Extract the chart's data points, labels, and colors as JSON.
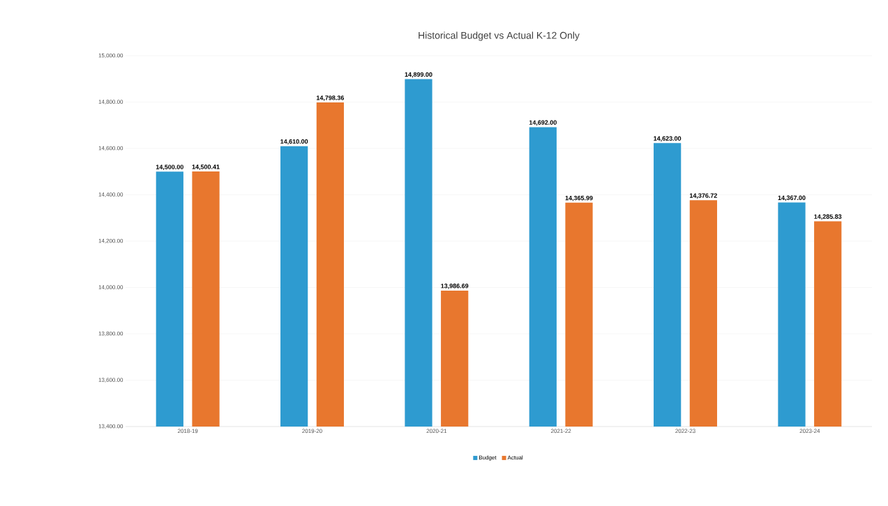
{
  "chart_data": {
    "type": "bar",
    "title": "Historical Budget vs Actual K-12 Only",
    "categories": [
      "2018-19",
      "2019-20",
      "2020-21",
      "2021-22",
      "2022-23",
      "2023-24"
    ],
    "series": [
      {
        "name": "Budget",
        "color": "#2e9bd0",
        "values": [
          14500,
          14610,
          14899,
          14692,
          14623,
          14367
        ],
        "value_labels": [
          "14,500.00",
          "14,610.00",
          "14,899.00",
          "14,692.00",
          "14,623.00",
          "14,367.00"
        ]
      },
      {
        "name": "Actual",
        "color": "#e8772e",
        "values": [
          14500.41,
          14798.36,
          13986.69,
          14365.99,
          14376.72,
          14285.83
        ],
        "value_labels": [
          "14,500.41",
          "14,798.36",
          "13,986.69",
          "14,365.99",
          "14,376.72",
          "14,285.83"
        ]
      }
    ],
    "ylim": [
      13400,
      15000
    ],
    "yticks": [
      {
        "value": 13400,
        "label": "13,400.00"
      },
      {
        "value": 13600,
        "label": "13,600.00"
      },
      {
        "value": 13800,
        "label": "13,800.00"
      },
      {
        "value": 14000,
        "label": "14,000.00"
      },
      {
        "value": 14200,
        "label": "14,200.00"
      },
      {
        "value": 14400,
        "label": "14,400.00"
      },
      {
        "value": 14600,
        "label": "14,600.00"
      },
      {
        "value": 14800,
        "label": "14,800.00"
      },
      {
        "value": 15000,
        "label": "15,000.00"
      }
    ],
    "grid": "y",
    "legend": "bottom"
  }
}
